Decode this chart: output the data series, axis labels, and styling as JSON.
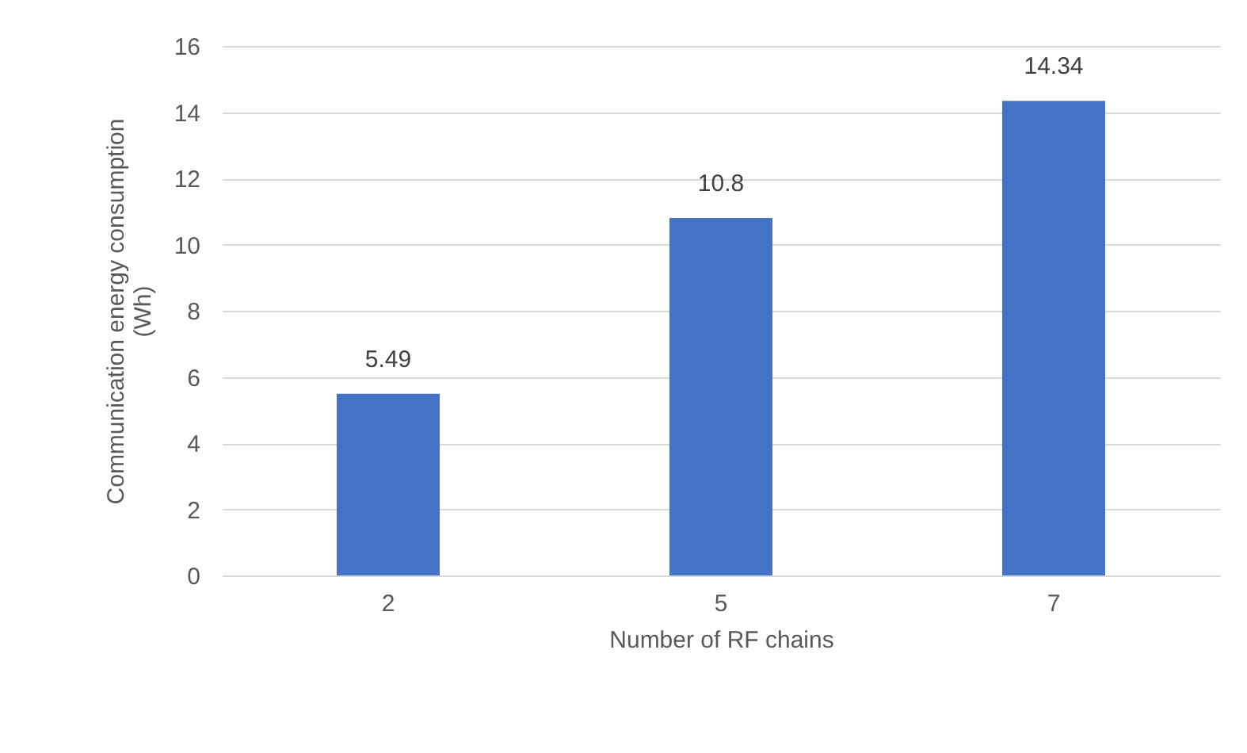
{
  "chart_data": {
    "type": "bar",
    "xlabel": "Number of RF chains",
    "ylabel": "Communication energy consumption\n(Wh)",
    "categories": [
      "2",
      "5",
      "7"
    ],
    "values": [
      5.49,
      10.8,
      14.34
    ],
    "color": "#4472c4",
    "ylim": [
      0,
      16
    ],
    "yticks": [
      0,
      2,
      4,
      6,
      8,
      10,
      12,
      14,
      16
    ],
    "grid": "y",
    "data_labels": true
  }
}
